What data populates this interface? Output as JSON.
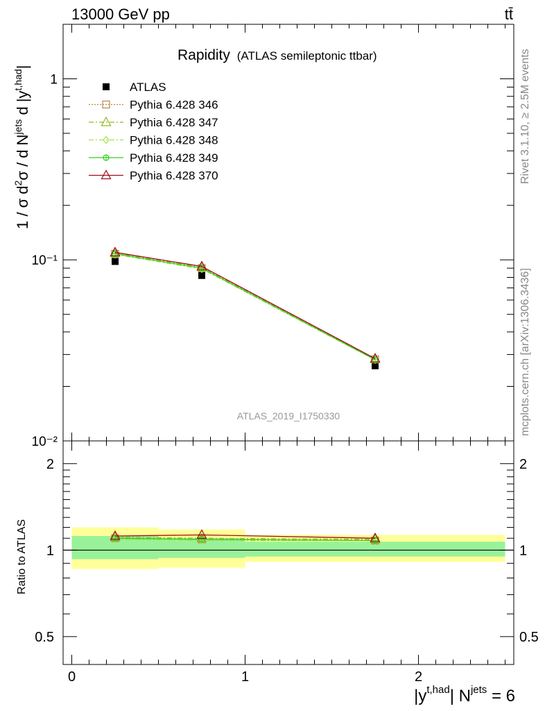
{
  "header": {
    "energy_label": "13000 GeV pp",
    "process_label": "tt̄"
  },
  "side_labels": {
    "rivet": "Rivet 3.1.10, ≥ 2.5M events",
    "site": "mcplots.cern.ch [arXiv:1306.3436]"
  },
  "analysis_id": "ATLAS_2019_I1750330",
  "chart_data": [
    {
      "type": "scatter",
      "title": "Rapidity",
      "subtitle": "(ATLAS semileptonic ttbar)",
      "ylabel": "1 / σ d²σ / d N^jets d |y^t,had|",
      "yscale": "log",
      "ylim": [
        0.01,
        2.0
      ],
      "xlim": [
        -0.05,
        2.55
      ],
      "y_ticks": [
        0.01,
        0.1,
        1
      ],
      "y_tick_labels": [
        "10⁻²",
        "10⁻¹",
        "1"
      ],
      "legend_position": "top-left",
      "x": [
        0.25,
        0.75,
        1.75
      ],
      "x_bins": [
        [
          0,
          0.5
        ],
        [
          0.5,
          1.0
        ],
        [
          1.0,
          2.5
        ]
      ],
      "series": [
        {
          "name": "ATLAS",
          "values": [
            0.098,
            0.082,
            0.026
          ],
          "color": "#000000",
          "marker": "square-filled",
          "line": "none"
        },
        {
          "name": "Pythia 6.428 346",
          "values": [
            0.108,
            0.09,
            0.0282
          ],
          "color": "#b8864a",
          "marker": "square-open",
          "line": "dotted"
        },
        {
          "name": "Pythia 6.428 347",
          "values": [
            0.109,
            0.091,
            0.0283
          ],
          "color": "#8fba1d",
          "marker": "triangle-open",
          "line": "dashdot"
        },
        {
          "name": "Pythia 6.428 348",
          "values": [
            0.107,
            0.089,
            0.028
          ],
          "color": "#a6e34a",
          "marker": "diamond-open",
          "line": "dashdot"
        },
        {
          "name": "Pythia 6.428 349",
          "values": [
            0.108,
            0.09,
            0.0281
          ],
          "color": "#33cc1f",
          "marker": "circle-cross",
          "line": "solid"
        },
        {
          "name": "Pythia 6.428 370",
          "values": [
            0.11,
            0.092,
            0.0285
          ],
          "color": "#a00a1a",
          "marker": "triangle-open",
          "line": "solid"
        }
      ]
    },
    {
      "type": "line",
      "ylabel": "Ratio to ATLAS",
      "xlabel": "|y^t,had| N^jets = 6",
      "ylim": [
        0.4,
        2.4
      ],
      "xlim": [
        -0.05,
        2.55
      ],
      "x_ticks": [
        0,
        1,
        2
      ],
      "y_ticks": [
        0.5,
        1,
        2
      ],
      "reference_line": 1.0,
      "bands": {
        "x_bins": [
          [
            0,
            0.5
          ],
          [
            0.5,
            1.0
          ],
          [
            1.0,
            2.5
          ]
        ],
        "stat_low": [
          0.93,
          0.94,
          0.95
        ],
        "stat_high": [
          1.12,
          1.1,
          1.07
        ],
        "total_low": [
          0.86,
          0.87,
          0.91
        ],
        "total_high": [
          1.2,
          1.18,
          1.13
        ],
        "stat_color": "#99f299",
        "total_color": "#ffff99"
      },
      "x": [
        0.25,
        0.75,
        1.75
      ],
      "series": [
        {
          "name": "Pythia 6.428 346",
          "values": [
            1.1,
            1.09,
            1.08
          ]
        },
        {
          "name": "Pythia 6.428 347",
          "values": [
            1.11,
            1.1,
            1.09
          ]
        },
        {
          "name": "Pythia 6.428 348",
          "values": [
            1.09,
            1.08,
            1.08
          ]
        },
        {
          "name": "Pythia 6.428 349",
          "values": [
            1.1,
            1.09,
            1.08
          ]
        },
        {
          "name": "Pythia 6.428 370",
          "values": [
            1.12,
            1.13,
            1.1
          ]
        }
      ]
    }
  ]
}
